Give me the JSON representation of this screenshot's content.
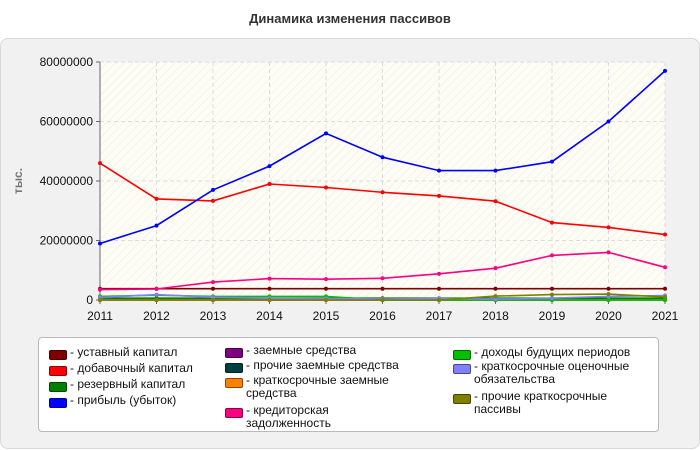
{
  "chart_data": {
    "type": "line",
    "title": "Динамика изменения пассивов",
    "ylabel": "тыс.",
    "xlabel": "",
    "x": [
      "2011",
      "2012",
      "2013",
      "2014",
      "2015",
      "2016",
      "2017",
      "2018",
      "2019",
      "2020",
      "2021"
    ],
    "ylim": [
      0,
      80000000
    ],
    "yticks": [
      "0",
      "20000000",
      "40000000",
      "60000000",
      "80000000"
    ],
    "grid": true,
    "legend_position": "bottom",
    "series": [
      {
        "name": "уставный капитал",
        "color": "#7f0000",
        "values": [
          3800000,
          3800000,
          3800000,
          3800000,
          3800000,
          3800000,
          3800000,
          3800000,
          3800000,
          3800000,
          3800000
        ]
      },
      {
        "name": "добавочный капитал",
        "color": "#ff0000",
        "values": [
          46000000,
          34000000,
          33300000,
          39000000,
          37800000,
          36200000,
          35000000,
          33200000,
          26000000,
          24400000,
          22000000
        ]
      },
      {
        "name": "резервный капитал",
        "color": "#008000",
        "values": [
          600000,
          600000,
          600000,
          600000,
          600000,
          600000,
          600000,
          600000,
          600000,
          600000,
          600000
        ]
      },
      {
        "name": "прибыль (убыток)",
        "color": "#0000ff",
        "values": [
          19000000,
          25000000,
          37000000,
          45000000,
          56000000,
          48000000,
          43500000,
          43500000,
          46500000,
          60000000,
          77000000
        ]
      },
      {
        "name": "заемные средства",
        "color": "#800080",
        "values": [
          0,
          0,
          0,
          0,
          0,
          0,
          0,
          0,
          0,
          0,
          0
        ]
      },
      {
        "name": "прочие заемные средства",
        "color": "#004040",
        "values": [
          0,
          0,
          0,
          0,
          0,
          0,
          0,
          0,
          0,
          0,
          0
        ]
      },
      {
        "name": "краткосрочные заемные средства",
        "color": "#ff8000",
        "values": [
          0,
          0,
          0,
          0,
          0,
          0,
          0,
          0,
          0,
          0,
          0
        ]
      },
      {
        "name": "кредиторская задолженность",
        "color": "#ff0080",
        "values": [
          3500000,
          3700000,
          6000000,
          7200000,
          7000000,
          7300000,
          8800000,
          10700000,
          15000000,
          16000000,
          11000000
        ]
      },
      {
        "name": "доходы будущих периодов",
        "color": "#00c000",
        "values": [
          1200000,
          1600000,
          1200000,
          1200000,
          1200000,
          0,
          0,
          0,
          0,
          0,
          0
        ]
      },
      {
        "name": "краткосрочные оценочные обязательства",
        "color": "#8080ff",
        "values": [
          800000,
          1800000,
          900000,
          600000,
          500000,
          300000,
          500000,
          300000,
          600000,
          1200000,
          1500000
        ]
      },
      {
        "name": "прочие краткосрочные пассивы",
        "color": "#808000",
        "values": [
          0,
          0,
          0,
          0,
          0,
          0,
          0,
          1300000,
          1800000,
          2000000,
          1000000
        ]
      }
    ]
  }
}
